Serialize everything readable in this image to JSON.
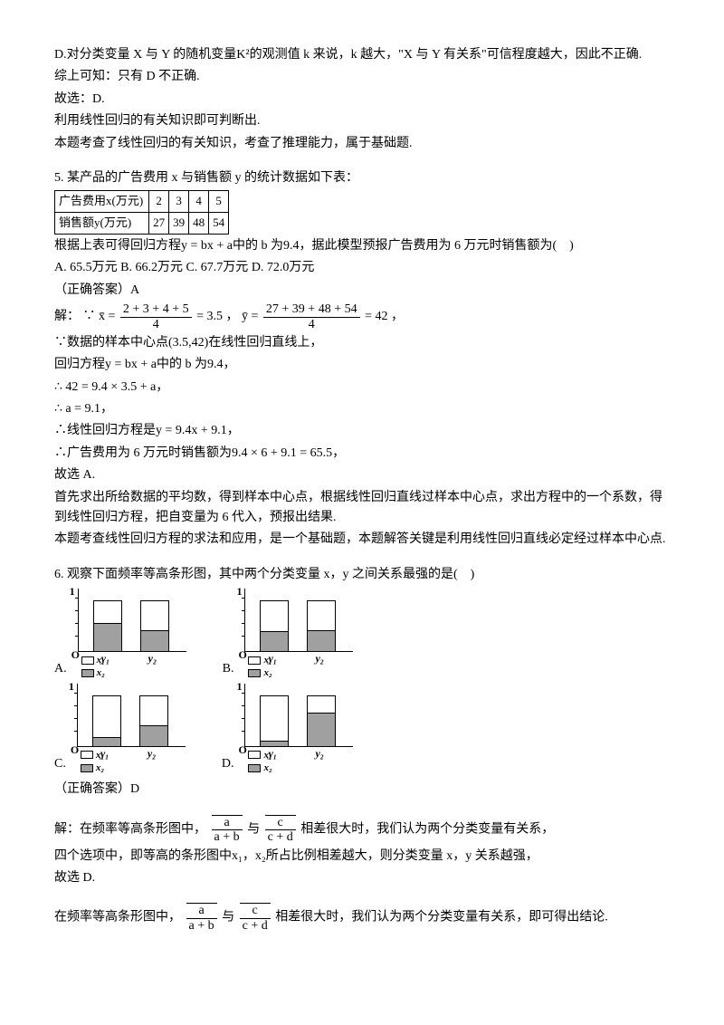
{
  "q4": {
    "lineD": "D.对分类变量 X 与 Y 的随机变量K²的观测值 k 来说，k 越大，\"X 与 Y 有关系\"可信程度越大，因此不正确.",
    "line2": "综上可知：只有 D 不正确.",
    "line3": "故选：D.",
    "line4": "利用线性回归的有关知识即可判断出.",
    "line5": "本题考查了线性回归的有关知识，考查了推理能力，属于基础题."
  },
  "q5": {
    "title": "5. 某产品的广告费用 x 与销售额 y 的统计数据如下表：",
    "tableHeader1": "广告费用x(万元)",
    "tableHeader2": "销售额y(万元)",
    "xVals": [
      "2",
      "3",
      "4",
      "5"
    ],
    "yVals": [
      "27",
      "39",
      "48",
      "54"
    ],
    "line1": "根据上表可得回归方程y = bx + a中的 b 为9.4，据此模型预报广告费用为 6 万元时销售额为(　)",
    "optA": "A. 65.5万元",
    "optB": "B. 66.2万元",
    "optC": "C. 67.7万元",
    "optD": "D. 72.0万元",
    "ansLabel": "（正确答案）A",
    "solPrefix": "解：",
    "xbarNum": "2 + 3 + 4 + 5",
    "xbarDen": "4",
    "xbarEq": "= 3.5",
    "ybarNum": "27 + 39 + 48 + 54",
    "ybarDen": "4",
    "ybarEq": "= 42",
    "sol1": "∵",
    "xbarLabel": "x̄ =",
    "ybarLabel": "ȳ =",
    "solComma": "，",
    "sol2": "∵数据的样本中心点(3.5,42)在线性回归直线上，",
    "sol3": "回归方程y = bx + a中的 b 为9.4，",
    "sol4": "∴ 42 = 9.4 × 3.5 + a，",
    "sol5": "∴ a = 9.1，",
    "sol6": "∴线性回归方程是y = 9.4x + 9.1，",
    "sol7": "∴广告费用为 6 万元时销售额为9.4 × 6 + 9.1 = 65.5，",
    "sol8": "故选 A.",
    "sol9": "首先求出所给数据的平均数，得到样本中心点，根据线性回归直线过样本中心点，求出方程中的一个系数，得到线性回归方程，把自变量为 6 代入，预报出结果.",
    "sol10": "本题考查线性回归方程的求法和应用，是一个基础题，本题解答关键是利用线性回归直线必定经过样本中心点."
  },
  "q6": {
    "title": "6. 观察下面频率等高条形图，其中两个分类变量 x，y 之间关系最强的是(　)",
    "optA": "A.",
    "optB": "B.",
    "optC": "C.",
    "optD": "D.",
    "legendX1": "x₁",
    "legendX2": "x₂",
    "yLabel1": "y₁",
    "yLabel2": "y₂",
    "ansLabel": "（正确答案）D",
    "solPrefix": "解：在频率等高条形图中，",
    "fracA_num": "a",
    "fracA_den": "a + b",
    "fracC_num": "c",
    "fracC_den": "c + d",
    "solMid": "与",
    "solSuffix1": "相差很大时，我们认为两个分类变量有关系，",
    "sol2": "四个选项中，即等高的条形图中x₁，x₂所占比例相差越大，则分类变量 x，y 关系越强，",
    "sol3": "故选 D.",
    "sol4pre": "在频率等高条形图中，",
    "sol4suf": "相差很大时，我们认为两个分类变量有关系，即可得出结论.",
    "chartA": {
      "bar1Fill": 0.55,
      "bar2Fill": 0.42
    },
    "chartB": {
      "bar1Fill": 0.4,
      "bar2Fill": 0.42
    },
    "chartC": {
      "bar1Fill": 0.18,
      "bar2Fill": 0.4
    },
    "chartD": {
      "bar1Fill": 0.1,
      "bar2Fill": 0.65
    }
  },
  "colors": {
    "barFill": "#a0a0a0"
  }
}
